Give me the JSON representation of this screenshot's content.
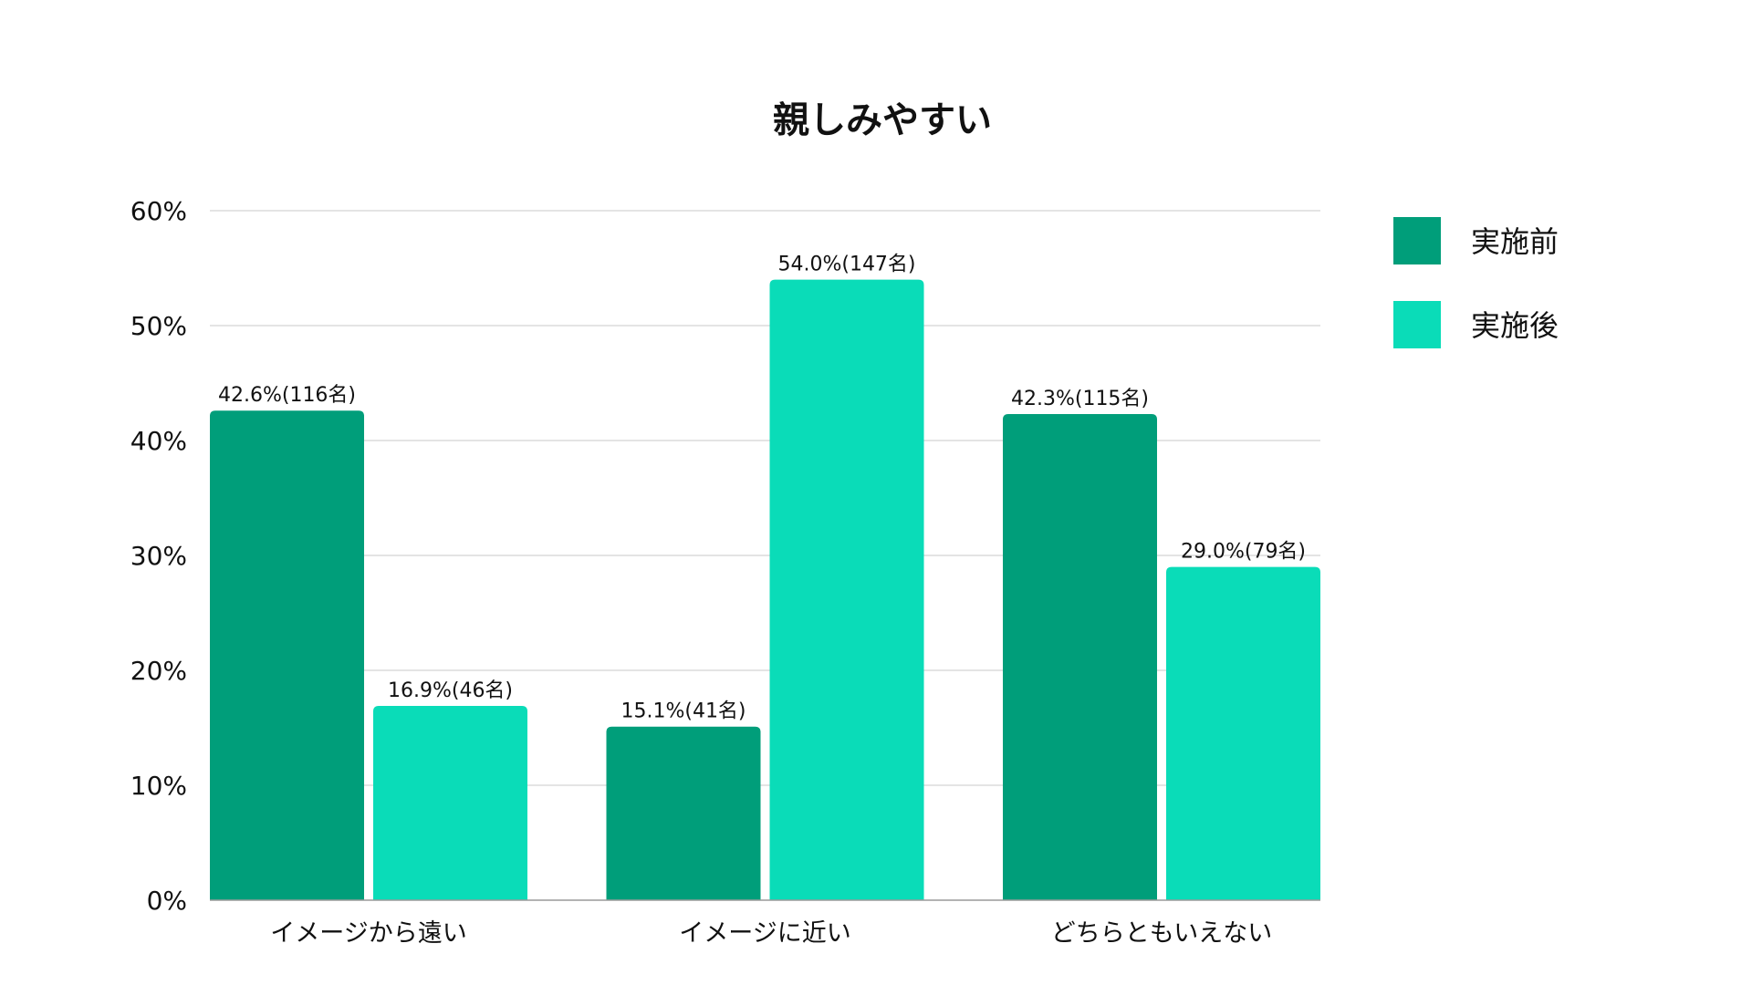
{
  "chart_data": {
    "type": "bar",
    "title": "親しみやすい",
    "xlabel": "",
    "ylabel": "",
    "ylim": [
      0,
      60
    ],
    "yticks": [
      0,
      10,
      20,
      30,
      40,
      50,
      60
    ],
    "ytick_suffix": "%",
    "grid": true,
    "legend_position": "top-right",
    "categories": [
      "イメージから遠い",
      "イメージに近い",
      "どちらともいえない"
    ],
    "series": [
      {
        "name": "実施前",
        "color": "#009e7a",
        "values": [
          42.6,
          15.1,
          42.3
        ],
        "labels": [
          "42.6%(116名)",
          "15.1%(41名)",
          "42.3%(115名)"
        ]
      },
      {
        "name": "実施後",
        "color": "#0adcb8",
        "values": [
          16.9,
          54.0,
          29.0
        ],
        "labels": [
          "16.9%(46名)",
          "54.0%(147名)",
          "29.0%(79名)"
        ]
      }
    ]
  }
}
